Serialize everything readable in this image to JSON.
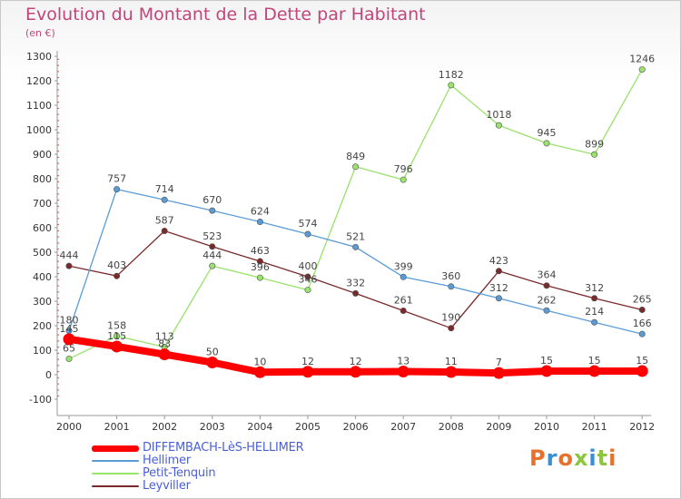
{
  "page": {
    "title": "Evolution du Montant de la Dette par Habitant",
    "subtitle": "(en €)"
  },
  "logo": {
    "text": "Proxiti",
    "colors": [
      "#e8702a",
      "#3a8fd0",
      "#e8702a",
      "#8cc63f",
      "#3a8fd0",
      "#8cc63f",
      "#e8702a"
    ]
  },
  "chart_data": {
    "type": "line",
    "categories": [
      "2000",
      "2001",
      "2002",
      "2003",
      "2004",
      "2005",
      "2006",
      "2007",
      "2008",
      "2009",
      "2010",
      "2011",
      "2012"
    ],
    "ylim": [
      -100,
      1300
    ],
    "yticks": [
      -100,
      0,
      100,
      200,
      300,
      400,
      500,
      600,
      700,
      800,
      900,
      1000,
      1100,
      1200,
      1300
    ],
    "grid": false,
    "legend_position": "bottom-left",
    "series": [
      {
        "name": "DIFFEMBACH-LèS-HELLIMER",
        "color": "#ff0000",
        "values": [
          145,
          115,
          83,
          50,
          10,
          12,
          12,
          13,
          11,
          7,
          15,
          15,
          15
        ]
      },
      {
        "name": "Hellimer",
        "color": "#5b9bd5",
        "values": [
          180,
          757,
          714,
          670,
          624,
          574,
          521,
          399,
          360,
          312,
          262,
          214,
          166
        ]
      },
      {
        "name": "Petit-Tenquin",
        "color": "#99e26b",
        "values": [
          65,
          158,
          113,
          444,
          396,
          346,
          849,
          796,
          1182,
          1018,
          945,
          899,
          1246
        ]
      },
      {
        "name": "Leyviller",
        "color": "#7a2a2a",
        "values": [
          444,
          403,
          587,
          523,
          463,
          400,
          332,
          261,
          190,
          423,
          364,
          312,
          265
        ]
      }
    ]
  }
}
